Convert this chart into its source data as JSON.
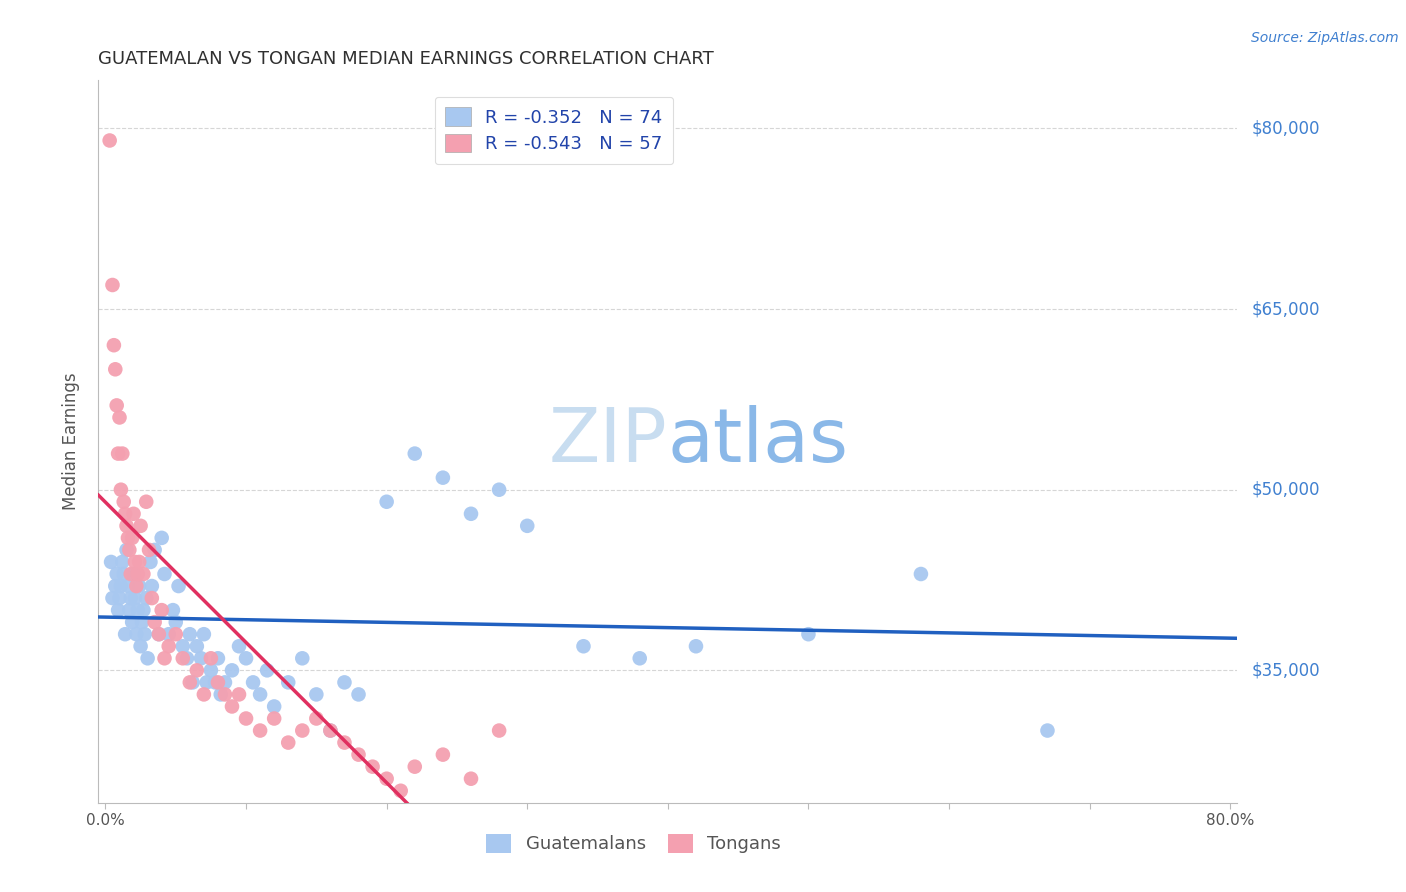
{
  "title": "GUATEMALAN VS TONGAN MEDIAN EARNINGS CORRELATION CHART",
  "source": "Source: ZipAtlas.com",
  "ylabel": "Median Earnings",
  "ytick_labels": [
    "$35,000",
    "$50,000",
    "$65,000",
    "$80,000"
  ],
  "ytick_values": [
    35000,
    50000,
    65000,
    80000
  ],
  "ymin": 24000,
  "ymax": 84000,
  "xmin": -0.005,
  "xmax": 0.805,
  "legend_labels": [
    "R = -0.352   N = 74",
    "R = -0.543   N = 57"
  ],
  "guatemalan_color": "#a8c8f0",
  "tongan_color": "#f4a0b0",
  "blue_line_color": "#2060c0",
  "pink_line_color": "#e03060",
  "grid_color": "#cccccc",
  "title_color": "#303030",
  "ytick_color": "#4080d0",
  "source_color": "#4080d0",
  "watermark_zip_color": "#c8ddf0",
  "watermark_atlas_color": "#8ab8e8",
  "legend_box_blue": "#a8c8f0",
  "legend_box_pink": "#f4a0b0",
  "guatemalan_x": [
    0.004,
    0.005,
    0.007,
    0.008,
    0.009,
    0.01,
    0.011,
    0.012,
    0.013,
    0.014,
    0.015,
    0.016,
    0.017,
    0.018,
    0.019,
    0.02,
    0.021,
    0.022,
    0.023,
    0.024,
    0.025,
    0.026,
    0.027,
    0.028,
    0.029,
    0.03,
    0.032,
    0.033,
    0.035,
    0.038,
    0.04,
    0.042,
    0.045,
    0.048,
    0.05,
    0.052,
    0.055,
    0.058,
    0.06,
    0.062,
    0.065,
    0.068,
    0.07,
    0.072,
    0.075,
    0.078,
    0.08,
    0.082,
    0.085,
    0.09,
    0.095,
    0.1,
    0.105,
    0.11,
    0.115,
    0.12,
    0.13,
    0.14,
    0.15,
    0.16,
    0.17,
    0.18,
    0.2,
    0.22,
    0.24,
    0.26,
    0.28,
    0.3,
    0.34,
    0.38,
    0.42,
    0.5,
    0.58,
    0.67
  ],
  "guatemalan_y": [
    44000,
    41000,
    42000,
    43000,
    40000,
    41000,
    42000,
    44000,
    43000,
    38000,
    45000,
    42000,
    40000,
    41000,
    39000,
    43000,
    41000,
    38000,
    40000,
    42000,
    37000,
    39000,
    40000,
    38000,
    41000,
    36000,
    44000,
    42000,
    45000,
    38000,
    46000,
    43000,
    38000,
    40000,
    39000,
    42000,
    37000,
    36000,
    38000,
    34000,
    37000,
    36000,
    38000,
    34000,
    35000,
    34000,
    36000,
    33000,
    34000,
    35000,
    37000,
    36000,
    34000,
    33000,
    35000,
    32000,
    34000,
    36000,
    33000,
    30000,
    34000,
    33000,
    49000,
    53000,
    51000,
    48000,
    50000,
    47000,
    37000,
    36000,
    37000,
    38000,
    43000,
    30000
  ],
  "tongan_x": [
    0.003,
    0.005,
    0.006,
    0.007,
    0.008,
    0.009,
    0.01,
    0.011,
    0.012,
    0.013,
    0.014,
    0.015,
    0.016,
    0.017,
    0.018,
    0.019,
    0.02,
    0.021,
    0.022,
    0.023,
    0.024,
    0.025,
    0.027,
    0.029,
    0.031,
    0.033,
    0.035,
    0.038,
    0.04,
    0.042,
    0.045,
    0.05,
    0.055,
    0.06,
    0.065,
    0.07,
    0.075,
    0.08,
    0.085,
    0.09,
    0.095,
    0.1,
    0.11,
    0.12,
    0.13,
    0.14,
    0.15,
    0.16,
    0.17,
    0.18,
    0.19,
    0.2,
    0.21,
    0.22,
    0.24,
    0.26,
    0.28
  ],
  "tongan_y": [
    79000,
    67000,
    62000,
    60000,
    57000,
    53000,
    56000,
    50000,
    53000,
    49000,
    48000,
    47000,
    46000,
    45000,
    43000,
    46000,
    48000,
    44000,
    42000,
    43000,
    44000,
    47000,
    43000,
    49000,
    45000,
    41000,
    39000,
    38000,
    40000,
    36000,
    37000,
    38000,
    36000,
    34000,
    35000,
    33000,
    36000,
    34000,
    33000,
    32000,
    33000,
    31000,
    30000,
    31000,
    29000,
    30000,
    31000,
    30000,
    29000,
    28000,
    27000,
    26000,
    25000,
    27000,
    28000,
    26000,
    30000
  ]
}
